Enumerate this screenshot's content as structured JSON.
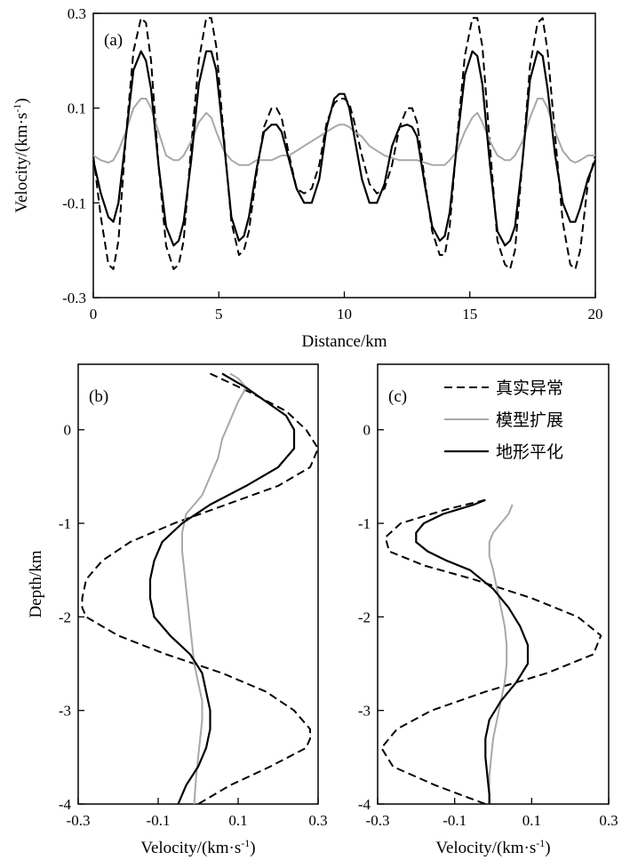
{
  "chart_data": [
    {
      "type": "line",
      "panel": "(a)",
      "xlabel": "Distance/km",
      "ylabel": "Velocity/(km·s⁻¹)",
      "xlim": [
        0,
        20
      ],
      "ylim": [
        -0.3,
        0.3
      ],
      "x_ticks": [
        0,
        5,
        10,
        15,
        20
      ],
      "x_tick_labels": [
        "0",
        "5",
        "10",
        "15",
        "20"
      ],
      "y_ticks": [
        -0.3,
        -0.1,
        0.1,
        0.3
      ],
      "y_tick_labels": [
        "-0.3",
        "-0.1",
        "0.1",
        "0.3"
      ],
      "x": [
        0,
        0.3,
        0.6,
        0.8,
        1.0,
        1.3,
        1.6,
        1.9,
        2.1,
        2.3,
        2.6,
        2.9,
        3.2,
        3.4,
        3.6,
        3.9,
        4.2,
        4.5,
        4.7,
        4.9,
        5.2,
        5.5,
        5.8,
        6.0,
        6.2,
        6.5,
        6.8,
        7.1,
        7.3,
        7.5,
        7.8,
        8.1,
        8.4,
        8.7,
        9.0,
        9.3,
        9.6,
        9.8,
        10.0,
        10.2,
        10.4,
        10.7,
        11.0,
        11.3,
        11.6,
        11.9,
        12.2,
        12.5,
        12.7,
        12.9,
        13.2,
        13.5,
        13.8,
        14.0,
        14.2,
        14.5,
        14.8,
        15.1,
        15.3,
        15.5,
        15.8,
        16.1,
        16.4,
        16.6,
        16.8,
        17.1,
        17.4,
        17.7,
        17.9,
        18.1,
        18.4,
        18.7,
        19.0,
        19.2,
        19.4,
        19.7,
        20.0
      ],
      "series": [
        {
          "name": "真实异常",
          "style": "dashed",
          "values": [
            0.0,
            -0.13,
            -0.23,
            -0.24,
            -0.18,
            0.04,
            0.22,
            0.29,
            0.28,
            0.2,
            -0.02,
            -0.19,
            -0.24,
            -0.23,
            -0.18,
            0.02,
            0.2,
            0.29,
            0.29,
            0.23,
            0.04,
            -0.14,
            -0.21,
            -0.2,
            -0.16,
            -0.04,
            0.06,
            0.1,
            0.1,
            0.08,
            0.0,
            -0.07,
            -0.08,
            -0.07,
            -0.02,
            0.07,
            0.11,
            0.12,
            0.12,
            0.11,
            0.07,
            0.0,
            -0.06,
            -0.08,
            -0.07,
            -0.02,
            0.06,
            0.1,
            0.1,
            0.07,
            -0.05,
            -0.16,
            -0.21,
            -0.21,
            -0.15,
            0.04,
            0.21,
            0.29,
            0.29,
            0.23,
            0.02,
            -0.18,
            -0.23,
            -0.24,
            -0.2,
            -0.01,
            0.19,
            0.28,
            0.29,
            0.22,
            0.04,
            -0.14,
            -0.23,
            -0.24,
            -0.2,
            -0.06,
            0.0
          ]
        },
        {
          "name": "模型扩展",
          "style": "solid-gray",
          "values": [
            0.0,
            -0.01,
            -0.015,
            -0.01,
            0.01,
            0.05,
            0.1,
            0.12,
            0.12,
            0.1,
            0.05,
            0.0,
            -0.01,
            -0.01,
            0.0,
            0.03,
            0.07,
            0.09,
            0.08,
            0.05,
            0.01,
            -0.01,
            -0.02,
            -0.02,
            -0.02,
            -0.01,
            -0.01,
            -0.01,
            -0.005,
            0.0,
            0.0,
            0.01,
            0.02,
            0.03,
            0.04,
            0.05,
            0.06,
            0.065,
            0.065,
            0.06,
            0.05,
            0.04,
            0.02,
            0.01,
            0.0,
            -0.005,
            -0.01,
            -0.01,
            -0.01,
            -0.01,
            -0.015,
            -0.02,
            -0.02,
            -0.02,
            -0.01,
            0.01,
            0.05,
            0.08,
            0.09,
            0.07,
            0.03,
            0.0,
            -0.01,
            -0.01,
            0.0,
            0.03,
            0.08,
            0.12,
            0.12,
            0.1,
            0.05,
            0.01,
            -0.01,
            -0.015,
            -0.01,
            0.0,
            0.0
          ]
        },
        {
          "name": "地形平化",
          "style": "solid-black",
          "values": [
            -0.01,
            -0.08,
            -0.13,
            -0.14,
            -0.1,
            0.04,
            0.18,
            0.22,
            0.2,
            0.14,
            -0.02,
            -0.15,
            -0.19,
            -0.18,
            -0.14,
            -0.01,
            0.15,
            0.22,
            0.22,
            0.18,
            0.03,
            -0.13,
            -0.18,
            -0.17,
            -0.13,
            -0.03,
            0.05,
            0.065,
            0.065,
            0.05,
            -0.01,
            -0.07,
            -0.1,
            -0.1,
            -0.05,
            0.06,
            0.12,
            0.13,
            0.13,
            0.1,
            0.04,
            -0.05,
            -0.1,
            -0.1,
            -0.06,
            0.02,
            0.06,
            0.065,
            0.06,
            0.04,
            -0.06,
            -0.15,
            -0.18,
            -0.17,
            -0.12,
            0.03,
            0.17,
            0.22,
            0.21,
            0.15,
            -0.02,
            -0.16,
            -0.19,
            -0.18,
            -0.15,
            -0.01,
            0.16,
            0.22,
            0.21,
            0.14,
            0.0,
            -0.1,
            -0.14,
            -0.14,
            -0.11,
            -0.05,
            -0.01
          ]
        }
      ]
    },
    {
      "type": "line",
      "panel": "(b)",
      "orientation": "profile",
      "xlabel": "Velocity/(km·s⁻¹)",
      "ylabel": "Depth/km",
      "xlim": [
        -0.3,
        0.3
      ],
      "ylim": [
        -4,
        0.7
      ],
      "x_ticks": [
        -0.3,
        -0.1,
        0.1,
        0.3
      ],
      "x_tick_labels": [
        "-0.3",
        "-0.1",
        "0.1",
        "0.3"
      ],
      "y_ticks": [
        0,
        -1,
        -2,
        -3,
        -4
      ],
      "y_tick_labels": [
        "0",
        "-1",
        "-2",
        "-3",
        "-4"
      ],
      "series": [
        {
          "name": "真实异常",
          "style": "dashed",
          "depth": [
            0.6,
            0.4,
            0.2,
            0.0,
            -0.2,
            -0.4,
            -0.6,
            -0.8,
            -1.0,
            -1.2,
            -1.4,
            -1.6,
            -1.8,
            -1.9,
            -2.0,
            -2.2,
            -2.4,
            -2.6,
            -2.8,
            -3.0,
            -3.2,
            -3.3,
            -3.4,
            -3.6,
            -3.8,
            -4.0
          ],
          "values": [
            0.03,
            0.13,
            0.22,
            0.27,
            0.3,
            0.28,
            0.2,
            0.07,
            -0.06,
            -0.17,
            -0.24,
            -0.28,
            -0.29,
            -0.29,
            -0.28,
            -0.2,
            -0.08,
            0.06,
            0.17,
            0.24,
            0.28,
            0.28,
            0.27,
            0.18,
            0.08,
            0.0
          ]
        },
        {
          "name": "模型扩展",
          "style": "solid-gray",
          "depth": [
            0.6,
            0.55,
            0.45,
            0.3,
            0.1,
            -0.1,
            -0.3,
            -0.5,
            -0.7,
            -0.9,
            -1.1,
            -1.3,
            -1.5,
            -1.7,
            -1.9,
            -2.1,
            -2.3,
            -2.5,
            -2.7,
            -2.9,
            -3.1,
            -3.3,
            -3.5,
            -3.7,
            -4.0
          ],
          "values": [
            0.08,
            0.1,
            0.12,
            0.1,
            0.08,
            0.06,
            0.05,
            0.03,
            0.01,
            -0.03,
            -0.04,
            -0.04,
            -0.035,
            -0.03,
            -0.025,
            -0.02,
            -0.015,
            -0.01,
            0.0,
            0.01,
            0.01,
            0.005,
            0.0,
            -0.005,
            -0.01
          ]
        },
        {
          "name": "地形平化",
          "style": "solid-black",
          "depth": [
            0.6,
            0.45,
            0.3,
            0.15,
            0.0,
            -0.2,
            -0.4,
            -0.6,
            -0.8,
            -1.0,
            -1.2,
            -1.4,
            -1.6,
            -1.8,
            -2.0,
            -2.2,
            -2.4,
            -2.6,
            -2.8,
            -3.0,
            -3.2,
            -3.4,
            -3.6,
            -3.8,
            -4.0
          ],
          "values": [
            0.06,
            0.12,
            0.17,
            0.22,
            0.24,
            0.24,
            0.2,
            0.12,
            0.03,
            -0.04,
            -0.09,
            -0.11,
            -0.12,
            -0.12,
            -0.11,
            -0.07,
            -0.02,
            0.01,
            0.02,
            0.03,
            0.03,
            0.02,
            0.0,
            -0.03,
            -0.05
          ]
        }
      ]
    },
    {
      "type": "line",
      "panel": "(c)",
      "orientation": "profile",
      "xlabel": "Velocity/(km·s⁻¹)",
      "ylabel": "",
      "xlim": [
        -0.3,
        0.3
      ],
      "ylim": [
        -4,
        0.7
      ],
      "x_ticks": [
        -0.3,
        -0.1,
        0.1,
        0.3
      ],
      "x_tick_labels": [
        "-0.3",
        "-0.1",
        "0.1",
        "0.3"
      ],
      "y_ticks": [
        0,
        -1,
        -2,
        -3,
        -4
      ],
      "y_tick_labels": [
        "0",
        "-1",
        "-2",
        "-3",
        "-4"
      ],
      "series": [
        {
          "name": "真实异常",
          "style": "dashed",
          "depth": [
            -0.75,
            -0.85,
            -1.0,
            -1.15,
            -1.3,
            -1.45,
            -1.6,
            -1.8,
            -2.0,
            -2.2,
            -2.4,
            -2.6,
            -2.8,
            -3.0,
            -3.2,
            -3.4,
            -3.6,
            -3.8,
            -4.0
          ],
          "values": [
            -0.02,
            -0.12,
            -0.24,
            -0.28,
            -0.27,
            -0.18,
            -0.05,
            0.1,
            0.22,
            0.28,
            0.26,
            0.14,
            -0.02,
            -0.16,
            -0.25,
            -0.29,
            -0.26,
            -0.15,
            -0.02
          ]
        },
        {
          "name": "模型扩展",
          "style": "solid-gray",
          "depth": [
            -0.8,
            -0.9,
            -1.0,
            -1.1,
            -1.2,
            -1.35,
            -1.5,
            -1.7,
            -1.9,
            -2.1,
            -2.3,
            -2.5,
            -2.7,
            -2.9,
            -3.1,
            -3.3,
            -3.5,
            -3.7,
            -4.0
          ],
          "values": [
            0.05,
            0.04,
            0.02,
            0.0,
            -0.01,
            -0.01,
            0.0,
            0.01,
            0.02,
            0.03,
            0.035,
            0.035,
            0.03,
            0.02,
            0.01,
            0.0,
            -0.005,
            -0.01,
            -0.01
          ]
        },
        {
          "name": "地形平化",
          "style": "solid-black",
          "depth": [
            -0.75,
            -0.8,
            -0.9,
            -1.0,
            -1.1,
            -1.2,
            -1.3,
            -1.4,
            -1.5,
            -1.7,
            -1.9,
            -2.1,
            -2.3,
            -2.5,
            -2.7,
            -2.9,
            -3.1,
            -3.3,
            -3.5,
            -3.7,
            -3.9,
            -4.0
          ],
          "values": [
            -0.02,
            -0.05,
            -0.13,
            -0.18,
            -0.2,
            -0.2,
            -0.17,
            -0.12,
            -0.06,
            0.0,
            0.04,
            0.07,
            0.09,
            0.09,
            0.06,
            0.02,
            -0.01,
            -0.02,
            -0.02,
            -0.015,
            -0.01,
            -0.01
          ]
        }
      ]
    }
  ],
  "legend": {
    "placement": "top-right of panel (c)",
    "entries": [
      "真实异常",
      "模型扩展",
      "地形平化"
    ]
  },
  "colors": {
    "true_anomaly": "#000000",
    "model_extension": "#a8a8a8",
    "terrain_flatten": "#000000"
  }
}
